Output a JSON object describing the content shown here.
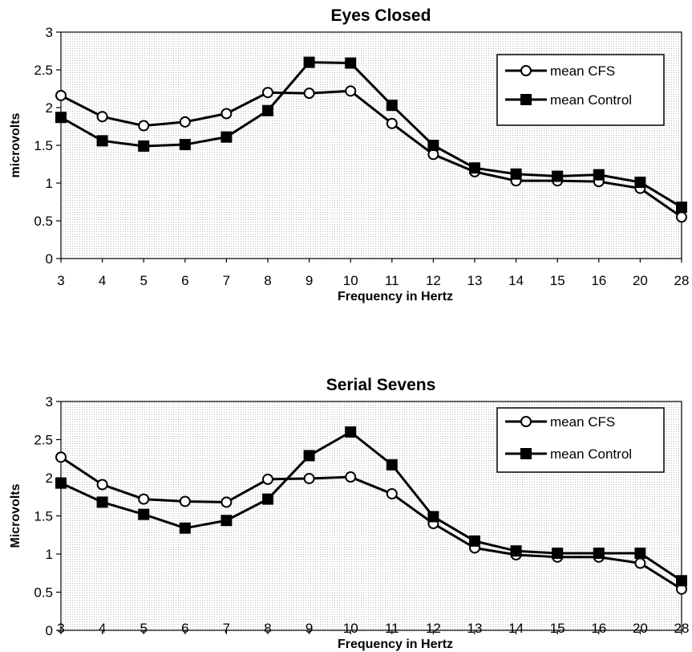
{
  "chart_data": [
    {
      "type": "line",
      "title": "Eyes Closed",
      "xlabel": "Frequency in Hertz",
      "ylabel": "microvolts",
      "categories": [
        "3",
        "4",
        "5",
        "6",
        "7",
        "8",
        "9",
        "10",
        "11",
        "12",
        "13",
        "14",
        "15",
        "16",
        "20",
        "28"
      ],
      "ylim": [
        0,
        3
      ],
      "yticks": [
        "0",
        "0.5",
        "1",
        "1.5",
        "2",
        "2.5",
        "3"
      ],
      "grid": true,
      "legend_position": "top-right",
      "series": [
        {
          "name": "mean CFS",
          "marker": "open-circle",
          "values": [
            2.16,
            1.88,
            1.76,
            1.81,
            1.92,
            2.2,
            2.19,
            2.22,
            1.79,
            1.38,
            1.15,
            1.03,
            1.03,
            1.02,
            0.93,
            0.55
          ]
        },
        {
          "name": "mean Control",
          "marker": "filled-square",
          "values": [
            1.87,
            1.56,
            1.49,
            1.51,
            1.61,
            1.96,
            2.6,
            2.59,
            2.03,
            1.5,
            1.2,
            1.12,
            1.09,
            1.11,
            1.01,
            0.68
          ]
        }
      ]
    },
    {
      "type": "line",
      "title": "Serial Sevens",
      "xlabel": "Frequency in Hertz",
      "ylabel": "Microvolts",
      "categories": [
        "3",
        "4",
        "5",
        "6",
        "7",
        "8",
        "9",
        "10",
        "11",
        "12",
        "13",
        "14",
        "15",
        "16",
        "20",
        "28"
      ],
      "ylim": [
        0,
        3
      ],
      "yticks": [
        "0",
        "0.5",
        "1",
        "1.5",
        "2",
        "2.5",
        "3"
      ],
      "grid": true,
      "legend_position": "top-right",
      "series": [
        {
          "name": "mean CFS",
          "marker": "open-circle",
          "values": [
            2.27,
            1.91,
            1.72,
            1.69,
            1.68,
            1.98,
            1.99,
            2.01,
            1.79,
            1.4,
            1.08,
            0.99,
            0.96,
            0.96,
            0.88,
            0.54
          ]
        },
        {
          "name": "mean Control",
          "marker": "filled-square",
          "values": [
            1.93,
            1.68,
            1.52,
            1.34,
            1.44,
            1.72,
            2.29,
            2.6,
            2.17,
            1.49,
            1.17,
            1.04,
            1.01,
            1.01,
            1.01,
            0.65
          ]
        }
      ]
    }
  ]
}
